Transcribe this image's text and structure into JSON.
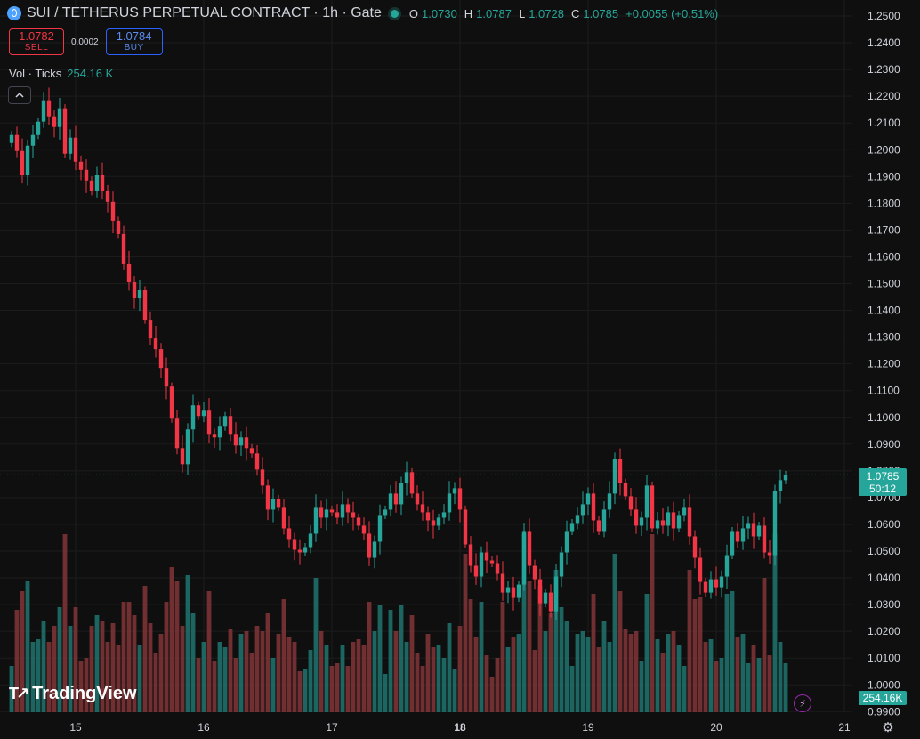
{
  "header": {
    "symbol_icon": "sui-drop-icon",
    "title": "SUI / TETHERUS PERPETUAL CONTRACT · 1h · Gate",
    "ohlc": [
      {
        "key": "O",
        "value": "1.0730"
      },
      {
        "key": "H",
        "value": "1.0787"
      },
      {
        "key": "L",
        "value": "1.0728"
      },
      {
        "key": "C",
        "value": "1.0785"
      }
    ],
    "change": "+0.0055 (+0.51%)"
  },
  "trade": {
    "sell_price": "1.0782",
    "sell_label": "SELL",
    "spread": "0.0002",
    "buy_price": "1.0784",
    "buy_label": "BUY"
  },
  "volume_legend": {
    "label": "Vol · Ticks",
    "value": "254.16 K"
  },
  "price_axis": {
    "labels": [
      "1.2500",
      "1.2400",
      "1.2300",
      "1.2200",
      "1.2100",
      "1.2000",
      "1.1900",
      "1.1800",
      "1.1700",
      "1.1600",
      "1.1500",
      "1.1400",
      "1.1300",
      "1.1200",
      "1.1100",
      "1.1000",
      "1.0900",
      "1.0800",
      "1.0700",
      "1.0600",
      "1.0500",
      "1.0400",
      "1.0300",
      "1.0200",
      "1.0100",
      "1.0000",
      "0.9900"
    ],
    "last_price": "1.0785",
    "countdown": "50:12",
    "last_volume": "254.16K"
  },
  "time_axis": {
    "labels": [
      {
        "text": "15",
        "bold": false
      },
      {
        "text": "16",
        "bold": false
      },
      {
        "text": "17",
        "bold": false
      },
      {
        "text": "18",
        "bold": true
      },
      {
        "text": "19",
        "bold": false
      },
      {
        "text": "20",
        "bold": false
      },
      {
        "text": "21",
        "bold": false
      }
    ]
  },
  "branding": {
    "logo_text": "TradingView"
  },
  "colors": {
    "up": "#26a69a",
    "down": "#f23645",
    "up_vol": "#1f6f69",
    "down_vol": "#7c3336",
    "grid": "#1c1c1c",
    "bg": "#0f0f0f"
  },
  "chart_data": {
    "type": "candlestick",
    "ylim": [
      0.99,
      1.25
    ],
    "x_start": "14",
    "x_end": "21",
    "interval_hours": 1,
    "closes": [
      1.2055,
      1.1995,
      1.1905,
      1.2015,
      1.2055,
      1.2105,
      1.2185,
      1.2125,
      1.2085,
      1.2155,
      1.1985,
      1.2045,
      1.1955,
      1.1925,
      1.1885,
      1.1845,
      1.1905,
      1.1845,
      1.1805,
      1.1735,
      1.1685,
      1.1575,
      1.1505,
      1.1445,
      1.1475,
      1.1365,
      1.1295,
      1.1255,
      1.1185,
      1.1115,
      1.0995,
      1.0885,
      1.0825,
      1.0955,
      1.1045,
      1.1005,
      1.1025,
      1.0935,
      1.0925,
      1.0965,
      1.1005,
      1.0935,
      1.0895,
      1.0925,
      1.0885,
      1.0865,
      1.0805,
      1.0745,
      1.0655,
      1.0695,
      1.0665,
      1.0585,
      1.0545,
      1.0505,
      1.0495,
      1.0515,
      1.0565,
      1.0665,
      1.0625,
      1.0655,
      1.0645,
      1.0625,
      1.0675,
      1.0645,
      1.0625,
      1.0595,
      1.0565,
      1.0475,
      1.0535,
      1.0635,
      1.0655,
      1.0715,
      1.0675,
      1.0755,
      1.0795,
      1.0715,
      1.0675,
      1.0645,
      1.0615,
      1.0595,
      1.0625,
      1.0645,
      1.0715,
      1.0735,
      1.0655,
      1.0525,
      1.0445,
      1.0405,
      1.0495,
      1.0465,
      1.0455,
      1.0415,
      1.0345,
      1.0365,
      1.0325,
      1.0375,
      1.0575,
      1.0445,
      1.0395,
      1.0305,
      1.0345,
      1.0275,
      1.0405,
      1.0495,
      1.0575,
      1.0605,
      1.0635,
      1.0675,
      1.0715,
      1.0615,
      1.0575,
      1.0655,
      1.0715,
      1.0845,
      1.0755,
      1.0705,
      1.0655,
      1.0595,
      1.0625,
      1.0745,
      1.0585,
      1.0615,
      1.0595,
      1.0645,
      1.0585,
      1.0635,
      1.0665,
      1.0555,
      1.0475,
      1.0385,
      1.0345,
      1.0395,
      1.0365,
      1.0405,
      1.0485,
      1.0575,
      1.0535,
      1.0585,
      1.0605,
      1.0555,
      1.0595,
      1.0495,
      1.0485,
      1.0725,
      1.0765,
      1.0785
    ]
  }
}
